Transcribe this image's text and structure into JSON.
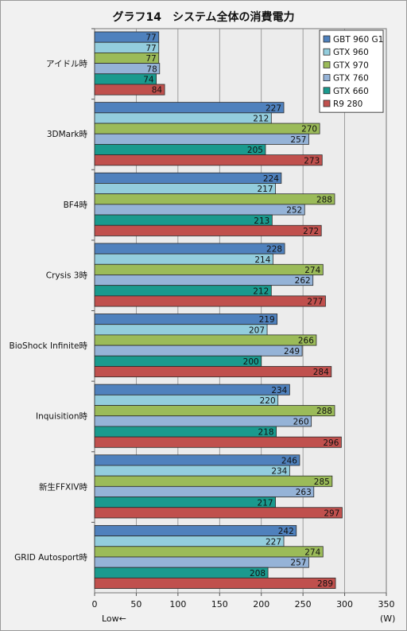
{
  "chart_data": {
    "type": "bar",
    "orientation": "horizontal",
    "title": "グラフ14　システム全体の消費電力",
    "categories": [
      "アイドル時",
      "3DMark時",
      "BF4時",
      "Crysis 3時",
      "BioShock Infinite時",
      "Inquisition時",
      "新生FFXIV時",
      "GRID Autosport時"
    ],
    "series": [
      {
        "name": "GBT 960 G1",
        "color": "#4f81bd",
        "values": [
          77,
          227,
          224,
          228,
          219,
          234,
          246,
          242
        ]
      },
      {
        "name": "GTX 960",
        "color": "#93cddd",
        "values": [
          77,
          212,
          217,
          214,
          207,
          220,
          234,
          227
        ]
      },
      {
        "name": "GTX 970",
        "color": "#9bbb59",
        "values": [
          77,
          270,
          288,
          274,
          266,
          288,
          285,
          274
        ]
      },
      {
        "name": "GTX 760",
        "color": "#95b3d7",
        "values": [
          78,
          257,
          252,
          262,
          249,
          260,
          263,
          257
        ]
      },
      {
        "name": "GTX 660",
        "color": "#1a9a8e",
        "values": [
          74,
          205,
          213,
          212,
          200,
          218,
          217,
          208
        ]
      },
      {
        "name": "R9 280",
        "color": "#c0504d",
        "values": [
          84,
          273,
          272,
          277,
          284,
          296,
          297,
          289
        ]
      }
    ],
    "xlim": [
      0,
      350
    ],
    "xticks": [
      0,
      50,
      100,
      150,
      200,
      250,
      300,
      350
    ],
    "xlabel": "(W)",
    "note": "Low←",
    "grid": "vertical",
    "legend": "top-right"
  }
}
